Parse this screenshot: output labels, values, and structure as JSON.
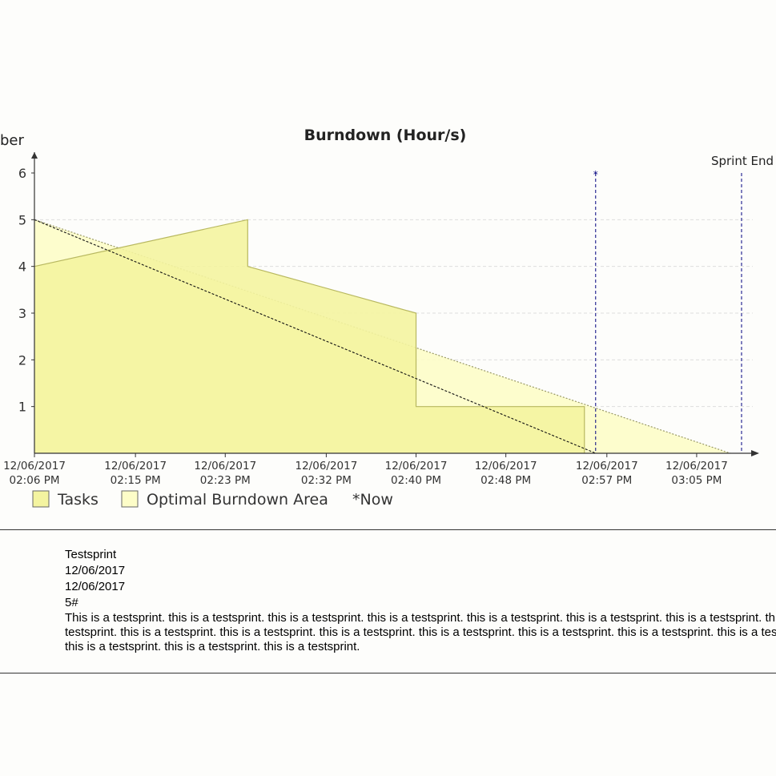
{
  "chart_data": {
    "type": "area",
    "title": "Burndown (Hour/s)",
    "ylabel": "ber",
    "xlabel": "",
    "ylim": [
      0,
      6
    ],
    "yticks": [
      1,
      2,
      3,
      4,
      5,
      6
    ],
    "x_ticks": [
      {
        "date": "12/06/2017",
        "time": "02:06 PM"
      },
      {
        "date": "12/06/2017",
        "time": "02:15 PM"
      },
      {
        "date": "12/06/2017",
        "time": "02:23 PM"
      },
      {
        "date": "12/06/2017",
        "time": "02:32 PM"
      },
      {
        "date": "12/06/2017",
        "time": "02:40 PM"
      },
      {
        "date": "12/06/2017",
        "time": "02:48 PM"
      },
      {
        "date": "12/06/2017",
        "time": "02:57 PM"
      },
      {
        "date": "12/06/2017",
        "time": "03:05 PM"
      }
    ],
    "xlim": [
      "02:06 PM",
      "03:10 PM"
    ],
    "grid": "horizontal dashed",
    "legend_position": "bottom-left",
    "series": [
      {
        "name": "Tasks",
        "color": "#f4f4a0",
        "stroke": "#b8b860",
        "points": [
          {
            "time": "02:06 PM",
            "value": 4
          },
          {
            "time": "02:25 PM",
            "value": 5
          },
          {
            "time": "02:25 PM",
            "value": 4
          },
          {
            "time": "02:40 PM",
            "value": 3
          },
          {
            "time": "02:40 PM",
            "value": 1
          },
          {
            "time": "02:55 PM",
            "value": 1
          },
          {
            "time": "02:55 PM",
            "value": 0
          }
        ]
      },
      {
        "name": "Optimal Burndown Area",
        "color": "#fdfdc8",
        "stroke": "#999966",
        "points": [
          {
            "time": "02:06 PM",
            "value": 5
          },
          {
            "time": "03:08 PM",
            "value": 0
          }
        ]
      }
    ],
    "trend_line": [
      {
        "time": "02:06 PM",
        "value": 5
      },
      {
        "time": "02:56 PM",
        "value": 0
      }
    ],
    "markers": [
      {
        "label": "*",
        "time": "02:56 PM",
        "color": "#000080"
      },
      {
        "label": "Sprint End",
        "time": "03:09 PM",
        "color": "#000080"
      }
    ],
    "legend": [
      {
        "label": "Tasks",
        "swatch": "#f4f4a0"
      },
      {
        "label": "Optimal Burndown Area",
        "swatch": "#fdfdc8"
      },
      {
        "label": "*Now",
        "swatch": ""
      }
    ]
  },
  "sprint": {
    "name": "Testsprint",
    "start_date": "12/06/2017",
    "end_date": "12/06/2017",
    "number": "5#",
    "description": "This is a testsprint. this is a testsprint. this is a testsprint. this is a testsprint. this is a testsprint. this is a testsprint. this is a testsprint. this is a testsprint. this is a testsprint. this is a testsprint. this is a testsprint. this is a testsprint. this is a testsprint. this is a testsprint. this is a testsprint. this is a testsprint. this is a testsprint. this is a testsprint."
  }
}
